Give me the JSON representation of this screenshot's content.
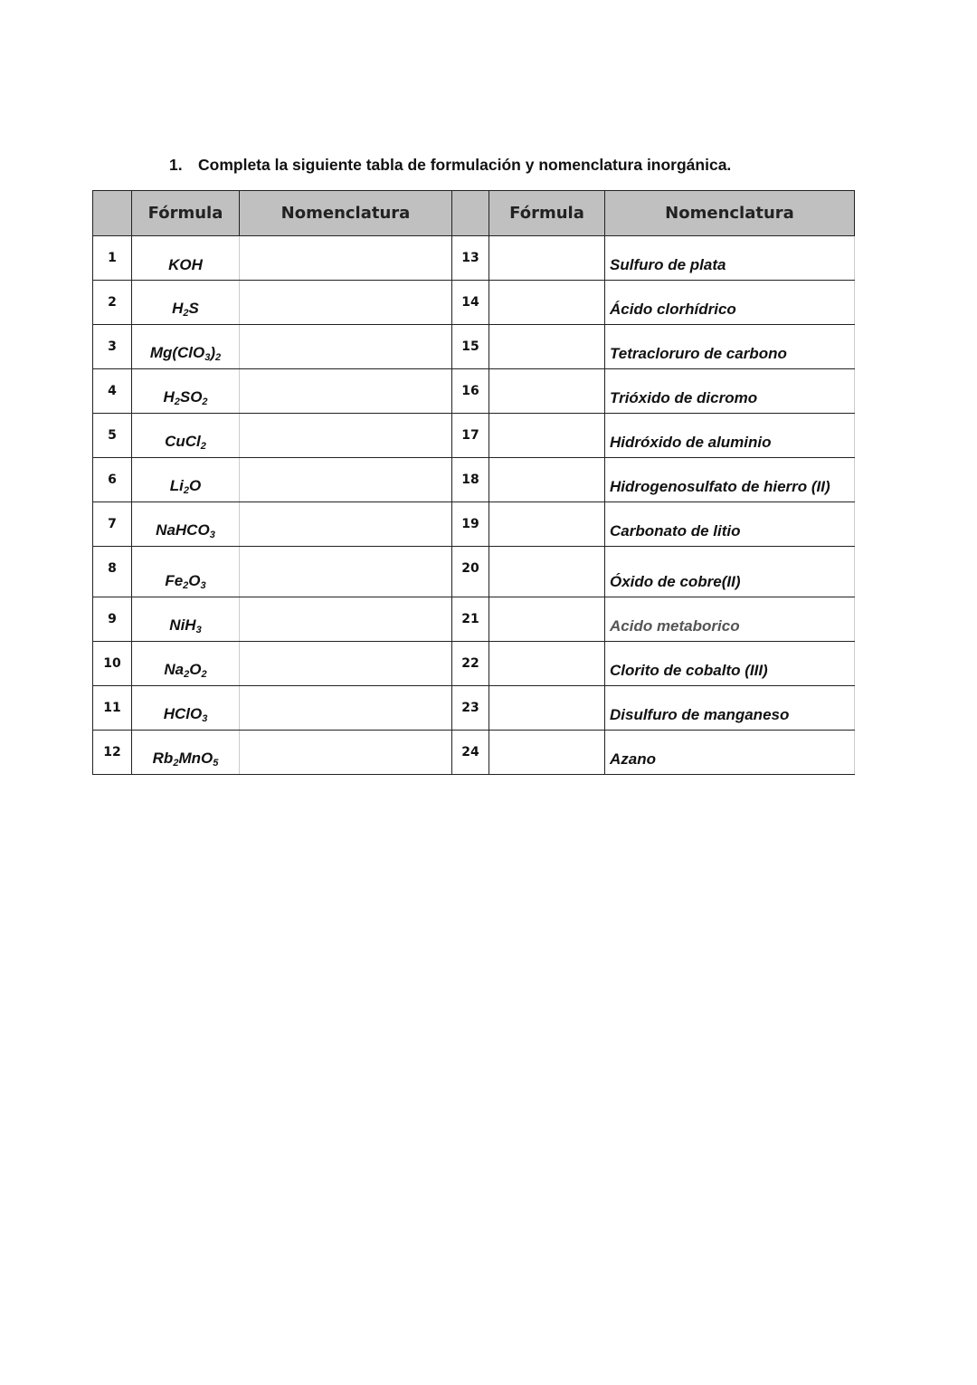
{
  "exercise": {
    "number": "1.",
    "instruction": "Completa la siguiente tabla de formulación y nomenclatura inorgánica."
  },
  "table": {
    "headers": [
      "",
      "Fórmula",
      "Nomenclatura",
      "",
      "Fórmula",
      "Nomenclatura"
    ],
    "left_rows": [
      {
        "n": "1",
        "formula": "KOH"
      },
      {
        "n": "2",
        "formula": "H2S"
      },
      {
        "n": "3",
        "formula": "Mg(ClO3)2"
      },
      {
        "n": "4",
        "formula": "H2SO2"
      },
      {
        "n": "5",
        "formula": "CuCl2"
      },
      {
        "n": "6",
        "formula": "Li2O"
      },
      {
        "n": "7",
        "formula": "NaHCO3"
      },
      {
        "n": "8",
        "formula": "Fe2O3"
      },
      {
        "n": "9",
        "formula": "NiH3"
      },
      {
        "n": "10",
        "formula": "Na2O2"
      },
      {
        "n": "11",
        "formula": "HClO3"
      },
      {
        "n": "12",
        "formula": "Rb2MnO5"
      }
    ],
    "right_rows": [
      {
        "n": "13",
        "name": "Sulfuro de plata"
      },
      {
        "n": "14",
        "name": "Ácido clorhídrico"
      },
      {
        "n": "15",
        "name": "Tetracloruro de carbono"
      },
      {
        "n": "16",
        "name": "Trióxido de dicromo"
      },
      {
        "n": "17",
        "name": "Hidróxido de aluminio"
      },
      {
        "n": "18",
        "name": "Hidrogenosulfato de hierro (II)"
      },
      {
        "n": "19",
        "name": "Carbonato de litio"
      },
      {
        "n": "20",
        "name": "Óxido de cobre(II)"
      },
      {
        "n": "21",
        "name": "Acido metaborico",
        "color": "#555555"
      },
      {
        "n": "22",
        "name": "Clorito de cobalto (III)"
      },
      {
        "n": "23",
        "name": "Disulfuro de manganeso"
      },
      {
        "n": "24",
        "name": "Azano"
      }
    ]
  }
}
